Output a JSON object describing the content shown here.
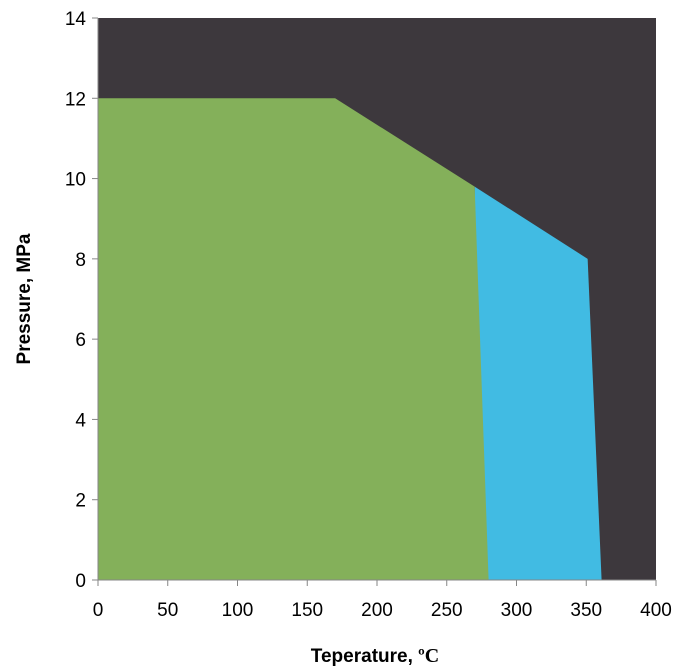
{
  "chart_data": {
    "type": "area",
    "xlabel": "Teperature, ",
    "xunit": "ºC",
    "ylabel": "Pressure, MPa",
    "xlim": [
      0,
      400
    ],
    "ylim": [
      0,
      14
    ],
    "xticks": [
      "0",
      "50",
      "100",
      "150",
      "200",
      "250",
      "300",
      "350",
      "400"
    ],
    "yticks": [
      "0",
      "2",
      "4",
      "6",
      "8",
      "10",
      "12",
      "14"
    ],
    "grid": false,
    "legend": "none",
    "background_color": "#3d383d",
    "regions": [
      {
        "color": "#41bbe3",
        "points": [
          [
            270,
            0
          ],
          [
            270,
            9.8
          ],
          [
            351,
            8.0
          ],
          [
            361,
            0
          ]
        ]
      },
      {
        "color": "#84b05a",
        "points": [
          [
            0,
            0
          ],
          [
            0,
            12
          ],
          [
            170,
            12
          ],
          [
            270,
            9.8
          ],
          [
            280,
            0
          ]
        ]
      }
    ]
  }
}
